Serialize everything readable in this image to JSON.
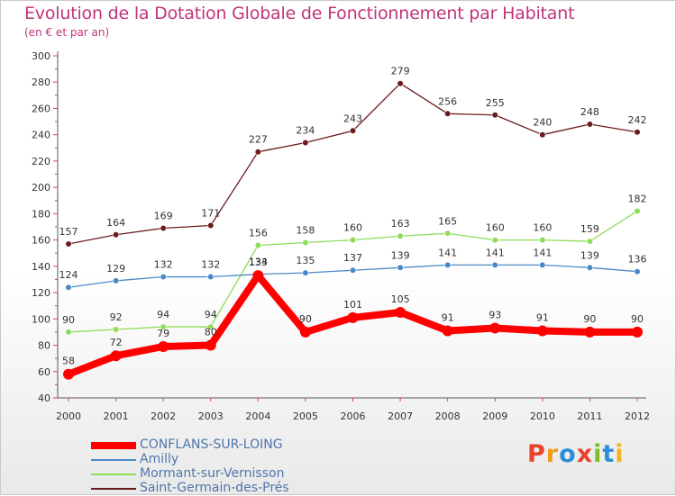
{
  "header": {
    "title": "Evolution de la Dotation Globale de Fonctionnement par Habitant",
    "subtitle": "(en € et par an)"
  },
  "logo": {
    "letters": [
      "P",
      "r",
      "o",
      "x",
      "i",
      "t",
      "i"
    ],
    "colors": [
      "#e8412c",
      "#f39a1e",
      "#2c8ed6",
      "#e8412c",
      "#7cbf2a",
      "#2c8ed6",
      "#f0b51e"
    ]
  },
  "chart_data": {
    "type": "line",
    "title": "Evolution de la Dotation Globale de Fonctionnement par Habitant",
    "subtitle": "(en € et par an)",
    "xlabel": "",
    "ylabel": "",
    "x": [
      "2000",
      "2001",
      "2002",
      "2003",
      "2004",
      "2005",
      "2006",
      "2007",
      "2008",
      "2009",
      "2010",
      "2011",
      "2012"
    ],
    "ylim": [
      40,
      300
    ],
    "yticks": [
      40,
      60,
      80,
      100,
      120,
      140,
      160,
      180,
      200,
      220,
      240,
      260,
      280,
      300
    ],
    "grid": false,
    "legend_position": "bottom-left",
    "series": [
      {
        "name": "Saint-Germain-des-Prés",
        "color": "#6b1b1b",
        "values": [
          157,
          164,
          169,
          171,
          227,
          234,
          243,
          279,
          256,
          255,
          240,
          248,
          242
        ]
      },
      {
        "name": "Mormant-sur-Vernisson",
        "color": "#8fdc5a",
        "values": [
          90,
          92,
          94,
          94,
          156,
          158,
          160,
          163,
          165,
          160,
          160,
          159,
          182
        ]
      },
      {
        "name": "Amilly",
        "color": "#4a89c8",
        "values": [
          124,
          129,
          132,
          132,
          134,
          135,
          137,
          139,
          141,
          141,
          141,
          139,
          136
        ]
      },
      {
        "name": "CONFLANS-SUR-LOING",
        "color": "#ff0000",
        "values": [
          58,
          72,
          79,
          80,
          133,
          90,
          101,
          105,
          91,
          93,
          91,
          90,
          90
        ]
      }
    ],
    "legend_order": [
      "CONFLANS-SUR-LOING",
      "Amilly",
      "Mormant-sur-Vernisson",
      "Saint-Germain-des-Prés"
    ]
  }
}
